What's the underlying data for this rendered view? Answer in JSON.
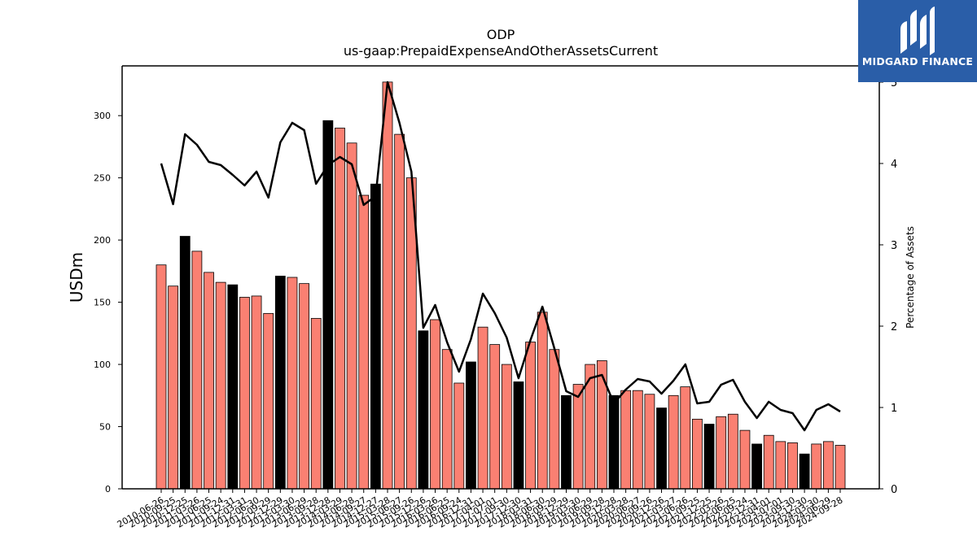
{
  "chart_data": {
    "type": "bar",
    "title": "ODP",
    "subtitle": "us-gaap:PrepaidExpenseAndOtherAssetsCurrent",
    "ylabel": "USDm",
    "y2label": "Percentage of Assets",
    "ylim": [
      0,
      340
    ],
    "y2lim": [
      0,
      5.2
    ],
    "yticks": [
      0,
      50,
      100,
      150,
      200,
      250,
      300
    ],
    "y2ticks": [
      0,
      1,
      2,
      3,
      4,
      5
    ],
    "grid": false,
    "colors": {
      "bar": "#fa8072",
      "highlight": "#000000",
      "line": "#000000"
    },
    "categories": [
      "2010-06-26",
      "2010-09-25",
      "2010-12-25",
      "2011-03-26",
      "2011-06-25",
      "2011-09-24",
      "2011-12-31",
      "2012-03-31",
      "2012-06-30",
      "2012-09-29",
      "2012-12-29",
      "2013-03-30",
      "2013-06-29",
      "2013-09-28",
      "2013-12-28",
      "2014-03-29",
      "2014-06-28",
      "2014-09-27",
      "2014-12-27",
      "2015-03-28",
      "2015-06-27",
      "2015-09-26",
      "2015-12-26",
      "2016-03-26",
      "2016-06-25",
      "2016-09-24",
      "2016-12-31",
      "2017-04-01",
      "2017-07-01",
      "2017-09-30",
      "2017-12-30",
      "2018-03-31",
      "2018-06-30",
      "2018-09-29",
      "2018-12-29",
      "2019-03-30",
      "2019-06-29",
      "2019-09-28",
      "2019-12-28",
      "2020-03-28",
      "2020-06-27",
      "2020-09-26",
      "2020-12-26",
      "2021-03-27",
      "2021-06-26",
      "2021-09-25",
      "2021-12-25",
      "2022-03-26",
      "2022-06-25",
      "2022-09-24",
      "2022-12-31",
      "2023-04-01",
      "2023-07-01",
      "2023-09-30",
      "2023-12-30",
      "2024-03-30",
      "2024-06-29",
      "2024-09-28"
    ],
    "tick_labels": [
      "2010-06-26",
      "2010-09-25",
      "2010-12-25",
      "2011-03-26",
      "2011-06-25",
      "2011-09-24",
      "2011-12-31",
      "2012-03-31",
      "2012-06-30",
      "2012-09-29",
      "2012-12-29",
      "2013-03-30",
      "2013-06-29",
      "2013-09-28",
      "2013-12-28",
      "2014-03-29",
      "2014-06-28",
      "2014-09-27",
      "2014-12-27",
      "2015-03-28",
      "2015-06-27",
      "2015-09-26",
      "2015-12-26",
      "2016-03-26",
      "2016-06-25",
      "2016-09-24",
      "2016-12-31",
      "2017-04-01",
      "2017-07-01",
      "2017-09-30",
      "2017-12-30",
      "2018-03-31",
      "2018-06-30",
      "2018-09-29",
      "2018-12-29",
      "2019-03-30",
      "2019-06-29",
      "2019-09-28",
      "2019-12-28",
      "2020-03-28",
      "2020-06-27",
      "2020-09-26",
      "2020-12-26",
      "2021-03-27",
      "2021-06-26",
      "2021-09-25",
      "2021-12-25",
      "2022-03-26",
      "2022-06-25",
      "2022-09-24",
      "2022-12-31",
      "2023-04-01",
      "2023-07-01",
      "2023-09-30",
      "2023-12-30",
      "2024-03-30",
      "2024-06-29",
      "2024-09-28"
    ],
    "series": [
      {
        "type": "bar",
        "values": [
          180,
          163,
          203,
          191,
          174,
          166,
          164,
          154,
          155,
          141,
          171,
          170,
          165,
          137,
          296,
          290,
          278,
          236,
          245,
          327,
          285,
          250,
          127,
          136,
          112,
          85,
          102,
          130,
          116,
          100,
          86,
          118,
          142,
          112,
          75,
          84,
          100,
          103,
          75,
          79,
          79,
          76,
          65,
          75,
          82,
          56,
          52,
          58,
          60,
          47,
          36,
          43,
          38,
          37,
          28,
          36,
          38,
          35
        ],
        "highlight": [
          false,
          false,
          true,
          false,
          false,
          false,
          true,
          false,
          false,
          false,
          true,
          false,
          false,
          false,
          true,
          false,
          false,
          false,
          true,
          false,
          false,
          false,
          true,
          false,
          false,
          false,
          true,
          false,
          false,
          false,
          true,
          false,
          false,
          false,
          true,
          false,
          false,
          false,
          true,
          false,
          false,
          false,
          true,
          false,
          false,
          false,
          true,
          false,
          false,
          false,
          true,
          false,
          false,
          false,
          true,
          false,
          false,
          false
        ]
      },
      {
        "type": "line",
        "axis": "right",
        "values": [
          4.0,
          3.5,
          4.36,
          4.23,
          4.02,
          3.98,
          3.86,
          3.73,
          3.9,
          3.58,
          4.26,
          4.5,
          4.41,
          3.75,
          3.98,
          4.08,
          3.99,
          3.49,
          3.6,
          5.0,
          4.5,
          3.9,
          1.98,
          2.26,
          1.8,
          1.44,
          1.84,
          2.4,
          2.16,
          1.86,
          1.36,
          1.83,
          2.24,
          1.73,
          1.2,
          1.13,
          1.36,
          1.4,
          1.05,
          1.22,
          1.35,
          1.32,
          1.17,
          1.33,
          1.53,
          1.05,
          1.07,
          1.28,
          1.34,
          1.07,
          0.87,
          1.07,
          0.97,
          0.93,
          0.72,
          0.97,
          1.04,
          0.95
        ]
      }
    ]
  },
  "logo": {
    "text": "MIDGARD FINANCE"
  }
}
